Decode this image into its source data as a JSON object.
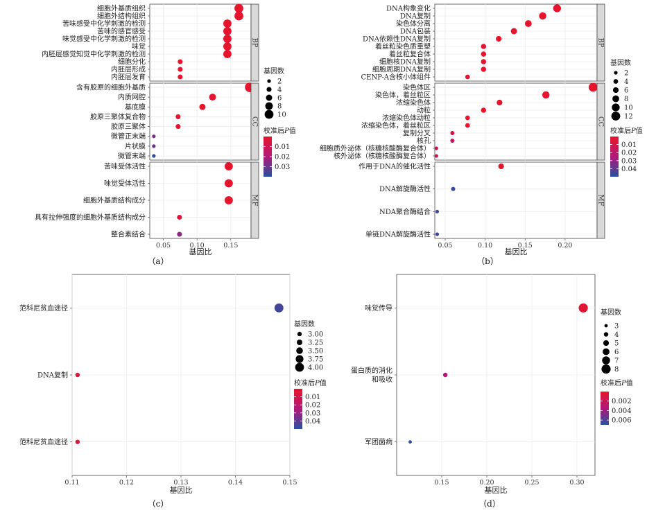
{
  "legend_labels": {
    "size_title": "基因数",
    "color_title_prefix": "校准后",
    "color_title_italic": "P",
    "color_title_suffix": "值"
  },
  "colors": {
    "low_p": "#e8152a",
    "mid_p": "#b1187a",
    "high_p": "#27509e",
    "strip": "#d9d9d9",
    "grid": "#ececec"
  },
  "chart_data": [
    {
      "id": "a",
      "type": "scatter",
      "caption": "（a）",
      "xlabel": "基因比",
      "xlim": [
        0.03,
        0.18
      ],
      "xticks": [
        0.05,
        0.1,
        0.15
      ],
      "xtick_labels": [
        "0.05",
        "0.10",
        "0.15"
      ],
      "size_legend": {
        "values": [
          2,
          4,
          6,
          8,
          10
        ],
        "labels": [
          "2",
          "4",
          "6",
          "8",
          "10"
        ]
      },
      "color_legend": {
        "range": [
          0.0,
          0.04
        ],
        "ticks": [
          0.01,
          0.02,
          0.03
        ],
        "labels": [
          "0.01",
          "0.02",
          "0.03"
        ]
      },
      "panels": [
        {
          "label": "BP",
          "points": [
            {
              "term": "细胞外基质组织",
              "x": 0.162,
              "count": 10,
              "p": 0.001
            },
            {
              "term": "细胞外结构组织",
              "x": 0.162,
              "count": 10,
              "p": 0.001
            },
            {
              "term": "苦味感受中化学刺激的检测",
              "x": 0.145,
              "count": 9,
              "p": 0.001
            },
            {
              "term": "苦味的感官感受",
              "x": 0.145,
              "count": 9,
              "p": 0.001
            },
            {
              "term": "味觉感受中化学刺激的检测",
              "x": 0.145,
              "count": 9,
              "p": 0.001
            },
            {
              "term": "味觉",
              "x": 0.145,
              "count": 9,
              "p": 0.001
            },
            {
              "term": "内胚层感觉知觉中化学刺激的检测",
              "x": 0.145,
              "count": 9,
              "p": 0.001
            },
            {
              "term": "细胞分化",
              "x": 0.075,
              "count": 4,
              "p": 0.001
            },
            {
              "term": "内胚层形成",
              "x": 0.075,
              "count": 4,
              "p": 0.001
            },
            {
              "term": "内胚层发育",
              "x": 0.075,
              "count": 4,
              "p": 0.001
            }
          ]
        },
        {
          "label": "CC",
          "points": [
            {
              "term": "含有胶原的细胞外基质",
              "x": 0.178,
              "count": 11,
              "p": 0.001
            },
            {
              "term": "内质网腔",
              "x": 0.123,
              "count": 7,
              "p": 0.001
            },
            {
              "term": "基底膜",
              "x": 0.108,
              "count": 6,
              "p": 0.001
            },
            {
              "term": "胶原三聚体复合物",
              "x": 0.072,
              "count": 4,
              "p": 0.002
            },
            {
              "term": "胶原三聚体",
              "x": 0.072,
              "count": 4,
              "p": 0.002
            },
            {
              "term": "微管正末端",
              "x": 0.036,
              "count": 2,
              "p": 0.028
            },
            {
              "term": "片状膜",
              "x": 0.036,
              "count": 2,
              "p": 0.03
            },
            {
              "term": "微管末端",
              "x": 0.036,
              "count": 2,
              "p": 0.04
            }
          ]
        },
        {
          "label": "MF",
          "points": [
            {
              "term": "苦味受体活性",
              "x": 0.147,
              "count": 9,
              "p": 0.001
            },
            {
              "term": "味觉受体活性",
              "x": 0.147,
              "count": 9,
              "p": 0.001
            },
            {
              "term": "细胞外基质结构成分",
              "x": 0.147,
              "count": 9,
              "p": 0.001
            },
            {
              "term": "具有拉伸强度的细胞外基质结构成分",
              "x": 0.074,
              "count": 4,
              "p": 0.004
            },
            {
              "term": "整合素结合",
              "x": 0.074,
              "count": 4,
              "p": 0.025
            }
          ]
        }
      ]
    },
    {
      "id": "b",
      "type": "scatter",
      "caption": "（b）",
      "xlabel": "基因比",
      "xlim": [
        0.037,
        0.24
      ],
      "xticks": [
        0.05,
        0.1,
        0.15,
        0.2
      ],
      "xtick_labels": [
        "0.05",
        "0.10",
        "0.15",
        "0.20"
      ],
      "size_legend": {
        "values": [
          2,
          4,
          6,
          8,
          10,
          12
        ],
        "labels": [
          "2",
          "4",
          "6",
          "8",
          "10",
          "12"
        ]
      },
      "color_legend": {
        "range": [
          0.0,
          0.05
        ],
        "ticks": [
          0.01,
          0.02,
          0.03,
          0.04
        ],
        "labels": [
          "0.01",
          "0.02",
          "0.03",
          "0.04"
        ]
      },
      "panels": [
        {
          "label": "BP",
          "points": [
            {
              "term": "DNA构象变化",
              "x": 0.19,
              "count": 10,
              "p": 0.001
            },
            {
              "term": "DNA复制",
              "x": 0.172,
              "count": 9,
              "p": 0.001
            },
            {
              "term": "染色体分离",
              "x": 0.154,
              "count": 8,
              "p": 0.001
            },
            {
              "term": "DNA包装",
              "x": 0.136,
              "count": 7,
              "p": 0.001
            },
            {
              "term": "DNA依赖性DNA复制",
              "x": 0.117,
              "count": 6,
              "p": 0.001
            },
            {
              "term": "着丝粒染色质重塑",
              "x": 0.098,
              "count": 5,
              "p": 0.001
            },
            {
              "term": "着丝粒复合体",
              "x": 0.098,
              "count": 5,
              "p": 0.001
            },
            {
              "term": "细胞核DNA复制",
              "x": 0.098,
              "count": 5,
              "p": 0.001
            },
            {
              "term": "细胞周期DNA复制",
              "x": 0.098,
              "count": 5,
              "p": 0.001
            },
            {
              "term": "CENP-A含核小体组件",
              "x": 0.078,
              "count": 4,
              "p": 0.002
            }
          ]
        },
        {
          "label": "CC",
          "points": [
            {
              "term": "染色体区",
              "x": 0.235,
              "count": 12,
              "p": 0.001
            },
            {
              "term": "染色体，着丝粒区",
              "x": 0.176,
              "count": 9,
              "p": 0.001
            },
            {
              "term": "浓缩染色体",
              "x": 0.118,
              "count": 6,
              "p": 0.001
            },
            {
              "term": "动粒",
              "x": 0.098,
              "count": 5,
              "p": 0.001
            },
            {
              "term": "浓缩染色体动粒",
              "x": 0.078,
              "count": 4,
              "p": 0.001
            },
            {
              "term": "浓缩染色体，着丝粒区",
              "x": 0.078,
              "count": 4,
              "p": 0.001
            },
            {
              "term": "复制分叉",
              "x": 0.059,
              "count": 3,
              "p": 0.008
            },
            {
              "term": "核孔",
              "x": 0.059,
              "count": 3,
              "p": 0.015
            },
            {
              "term": "细胞质外泌体（核糖核酸酶复合体）",
              "x": 0.039,
              "count": 2,
              "p": 0.012
            },
            {
              "term": "核外泌体（核糖核酸酶复合体）",
              "x": 0.039,
              "count": 2,
              "p": 0.012
            }
          ]
        },
        {
          "label": "MF",
          "points": [
            {
              "term": "作用于DNA的催化活性",
              "x": 0.12,
              "count": 6,
              "p": 0.001
            },
            {
              "term": "DNA解旋酶活性",
              "x": 0.06,
              "count": 3,
              "p": 0.047
            },
            {
              "term": "NDA聚合酶结合",
              "x": 0.04,
              "count": 2,
              "p": 0.045
            },
            {
              "term": "单链DNA解旋酶活性",
              "x": 0.04,
              "count": 2,
              "p": 0.046
            }
          ]
        }
      ]
    },
    {
      "id": "c",
      "type": "scatter",
      "caption": "（c）",
      "xlabel": "基因比",
      "xlim": [
        0.11,
        0.15
      ],
      "xticks": [
        0.11,
        0.12,
        0.13,
        0.14,
        0.15
      ],
      "xtick_labels": [
        "0.11",
        "0.12",
        "0.13",
        "0.14",
        "0.15"
      ],
      "size_legend": {
        "values": [
          3.0,
          3.25,
          3.5,
          3.75,
          4.0
        ],
        "labels": [
          "3.00",
          "3.25",
          "3.50",
          "3.75",
          "4.00"
        ]
      },
      "color_legend": {
        "range": [
          0.0,
          0.05
        ],
        "ticks": [
          0.01,
          0.02,
          0.03,
          0.04
        ],
        "labels": [
          "0.01",
          "0.02",
          "0.03",
          "0.04"
        ]
      },
      "panels": [
        {
          "label": "",
          "points": [
            {
              "term": "范科尼贫血途径",
              "x": 0.148,
              "count": 4,
              "p": 0.045
            },
            {
              "term": "DNA复制",
              "x": 0.111,
              "count": 3,
              "p": 0.006
            },
            {
              "term": "范科尼贫血途径",
              "x": 0.111,
              "count": 3,
              "p": 0.006
            }
          ]
        }
      ]
    },
    {
      "id": "d",
      "type": "scatter",
      "caption": "（d）",
      "xlabel": "基因比",
      "xlim": [
        0.1,
        0.32
      ],
      "xticks": [
        0.15,
        0.2,
        0.25,
        0.3
      ],
      "xtick_labels": [
        "0.15",
        "0.20",
        "0.25",
        "0.30"
      ],
      "size_legend": {
        "values": [
          3,
          4,
          5,
          6,
          7,
          8
        ],
        "labels": [
          "3",
          "4",
          "5",
          "6",
          "7",
          "8"
        ]
      },
      "color_legend": {
        "range": [
          0.0,
          0.007
        ],
        "ticks": [
          0.002,
          0.004,
          0.006
        ],
        "labels": [
          "0.002",
          "0.004",
          "0.006"
        ]
      },
      "panels": [
        {
          "label": "",
          "points": [
            {
              "term": "味觉传导",
              "x": 0.307,
              "count": 8,
              "p": 0.0005
            },
            {
              "term": "蛋白质的消化\n和吸收",
              "x": 0.154,
              "count": 4,
              "p": 0.0035
            },
            {
              "term": "军团菌病",
              "x": 0.115,
              "count": 3,
              "p": 0.0068
            }
          ]
        }
      ]
    }
  ]
}
